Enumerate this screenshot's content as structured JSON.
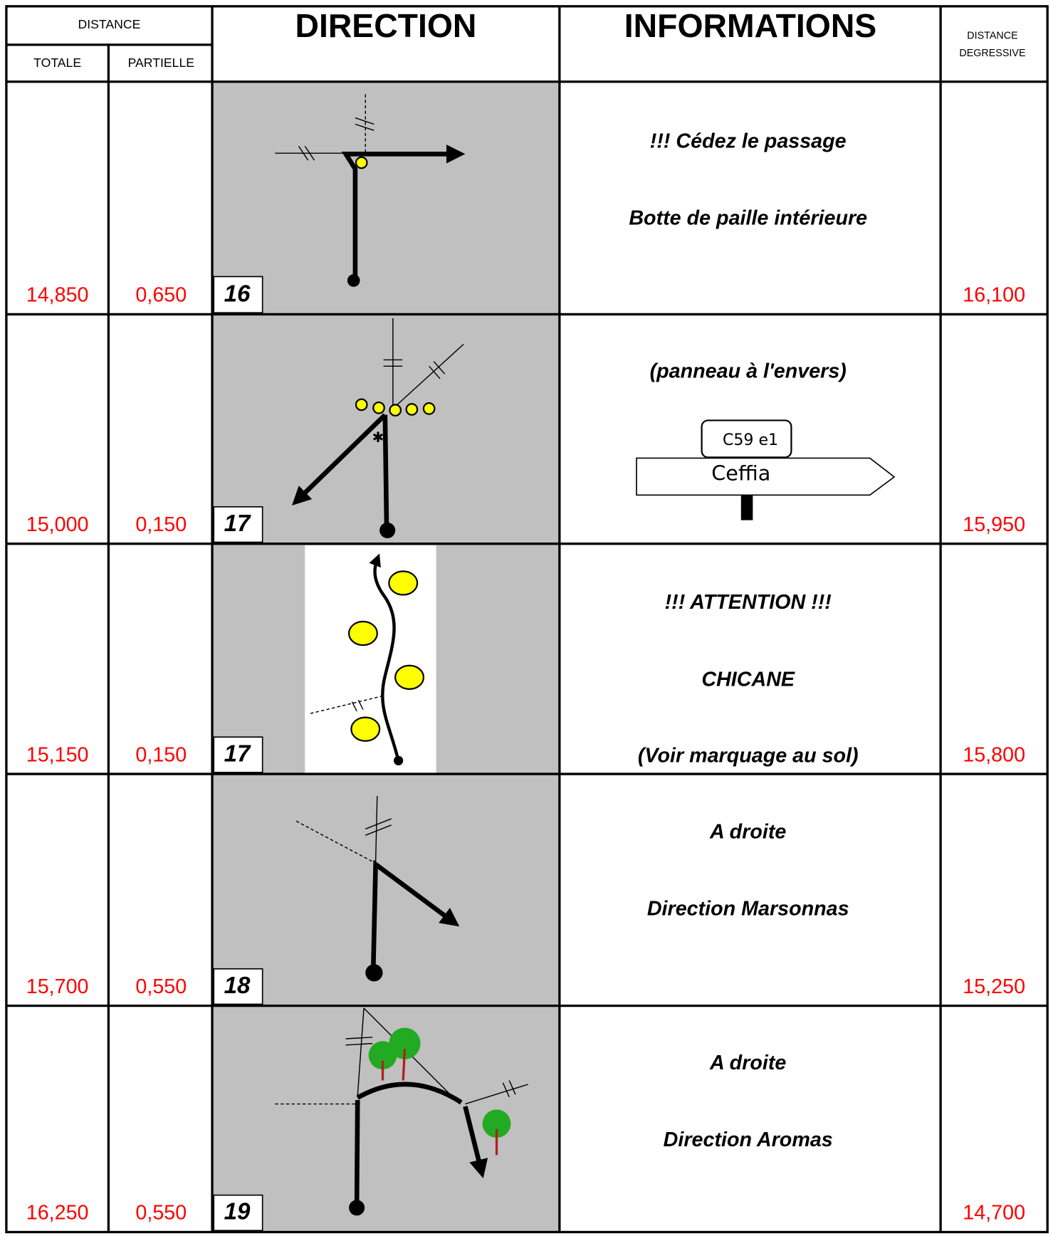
{
  "header": {
    "distance": "DISTANCE",
    "totale": "TOTALE",
    "partielle": "PARTIELLE",
    "direction": "DIRECTION",
    "informations": "INFORMATIONS",
    "degressive": [
      "DISTANCE",
      "DEGRESSIVE"
    ]
  },
  "rows": [
    {
      "totale": "14,850",
      "partielle": "0,650",
      "case": "16",
      "info": [
        "!!!  Cédez le passage",
        "Botte de paille intérieure"
      ],
      "degressive": "16,100"
    },
    {
      "totale": "15,000",
      "partielle": "0,150",
      "case": "17",
      "info": [
        "(panneau à l'envers)"
      ],
      "sign": {
        "plate": "C59 e1",
        "destination": "Ceffia"
      },
      "degressive": "15,950"
    },
    {
      "totale": "15,150",
      "partielle": "0,150",
      "case": "17",
      "info": [
        "!!! ATTENTION !!!",
        "CHICANE",
        "(Voir marquage au sol)"
      ],
      "degressive": "15,800"
    },
    {
      "totale": "15,700",
      "partielle": "0,550",
      "case": "18",
      "info": [
        "A droite",
        "Direction Marsonnas"
      ],
      "degressive": "15,250"
    },
    {
      "totale": "16,250",
      "partielle": "0,550",
      "case": "19",
      "info": [
        "A droite",
        "Direction Aromas"
      ],
      "degressive": "14,700"
    }
  ]
}
